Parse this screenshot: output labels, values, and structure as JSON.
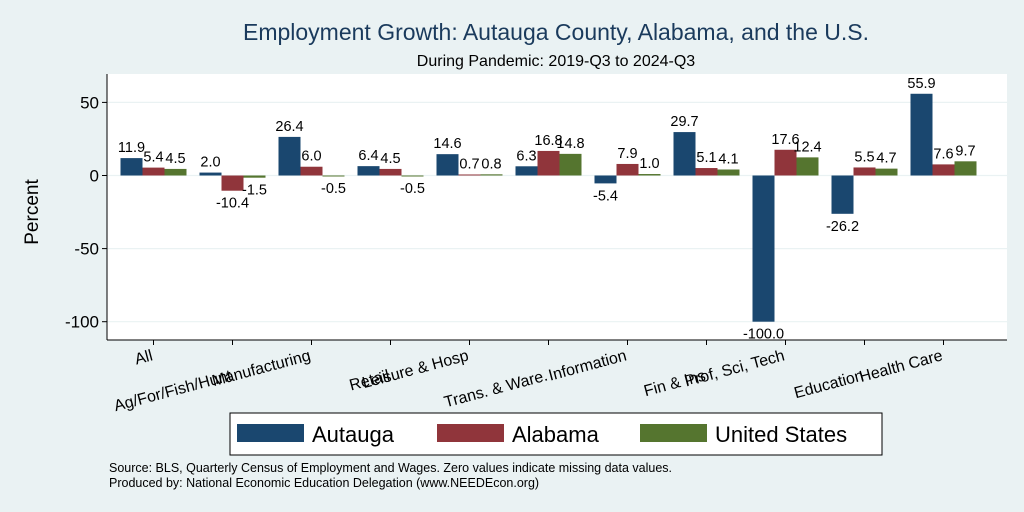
{
  "colors": {
    "background": "#eaf2f3",
    "plot_bg": "#ffffff",
    "grid": "#eaf2f3",
    "title": "#1a3a5c",
    "series": [
      "#1a476f",
      "#90353b",
      "#55752f"
    ]
  },
  "chart_data": {
    "type": "bar",
    "title": "Employment Growth: Autauga County, Alabama, and the U.S.",
    "subtitle": "During Pandemic: 2019-Q3 to 2024-Q3",
    "ylabel": "Percent",
    "xlabel": "",
    "ylim": [
      -105,
      62
    ],
    "yticks": [
      50,
      0,
      -50,
      -100
    ],
    "grid": true,
    "legend_position": "bottom",
    "categories": [
      "All",
      "Ag/For/Fish/Hunt",
      "Manufacturing",
      "Retail",
      "Leisure & Hosp",
      "Trans. & Ware.",
      "Information",
      "Fin & Ins",
      "Prof, Sci, Tech",
      "Education",
      "Health Care"
    ],
    "series": [
      {
        "name": "Autauga",
        "values": [
          11.9,
          2.0,
          26.4,
          6.4,
          14.6,
          6.3,
          -5.4,
          29.7,
          -100.0,
          -26.2,
          55.9
        ],
        "labels": [
          "11.9",
          "2.0",
          "26.4",
          "6.4",
          "14.6",
          "6.3",
          "-5.4",
          "29.7",
          "-100.0",
          "-26.2",
          "55.9"
        ]
      },
      {
        "name": "Alabama",
        "values": [
          5.4,
          -10.4,
          6.0,
          4.5,
          0.7,
          16.8,
          7.9,
          5.1,
          17.6,
          5.5,
          7.6
        ],
        "labels": [
          "5.4",
          "-10.4",
          "6.0",
          "4.5",
          "0.7",
          "16.8",
          "7.9",
          "5.1",
          "17.6",
          "5.5",
          "7.6"
        ]
      },
      {
        "name": "United States",
        "values": [
          4.5,
          -1.5,
          -0.5,
          -0.5,
          0.8,
          14.8,
          1.0,
          4.1,
          12.4,
          4.7,
          9.7
        ],
        "labels": [
          "4.5",
          "-1.5",
          "-0.5",
          "-0.5",
          "0.8",
          "14.8",
          "1.0",
          "4.1",
          "12.4",
          "4.7",
          "9.7"
        ]
      }
    ]
  },
  "footer": {
    "source": "Source: BLS, Quarterly Census of Employment and Wages. Zero values indicate missing data values.",
    "produced_by": "Produced by: National Economic Education Delegation (www.NEEDEcon.org)"
  }
}
